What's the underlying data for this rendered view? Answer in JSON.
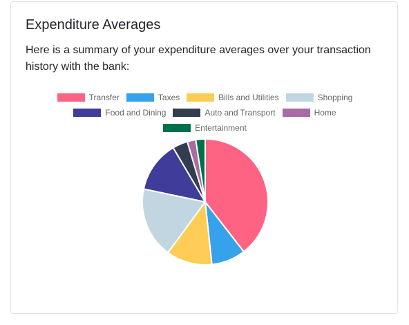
{
  "card": {
    "title": "Expenditure Averages",
    "description": "Here is a summary of your expenditure averages over your transaction history with the bank:"
  },
  "chart_data": {
    "type": "pie",
    "categories": [
      "Transfer",
      "Taxes",
      "Bills and Utilities",
      "Shopping",
      "Food and Dining",
      "Auto and Transport",
      "Home",
      "Entertainment"
    ],
    "values": [
      39.5,
      8.8,
      11.8,
      18.2,
      13.2,
      3.9,
      2.2,
      2.4
    ],
    "colors": [
      "#ff6384",
      "#36a2eb",
      "#ffcd56",
      "#c2d6e2",
      "#3f3d99",
      "#343c4f",
      "#a86ba5",
      "#00704a"
    ],
    "legend_position": "top"
  }
}
